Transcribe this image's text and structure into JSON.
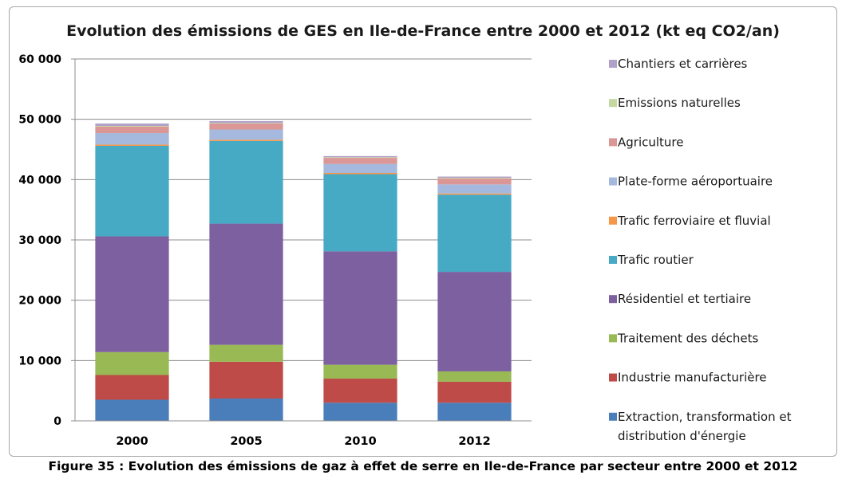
{
  "caption": "Figure 35 : Evolution des émissions de gaz à effet de serre en Ile-de-France par secteur entre 2000 et 2012",
  "chart_data": {
    "type": "bar",
    "stacked": true,
    "title": "Evolution des émissions de GES en Ile-de-France entre 2000 et 2012  (kt eq CO2/an)",
    "xlabel": "",
    "ylabel": "",
    "categories": [
      "2000",
      "2005",
      "2010",
      "2012"
    ],
    "ylim": [
      0,
      60000
    ],
    "yticks": [
      0,
      10000,
      20000,
      30000,
      40000,
      50000,
      60000
    ],
    "ytick_labels": [
      "0",
      "10 000",
      "20 000",
      "30 000",
      "40 000",
      "50 000",
      "60 000"
    ],
    "grid": "horizontal",
    "legend_position": "right",
    "series": [
      {
        "name": "Extraction, transformation et distribution d'énergie",
        "label_lines": [
          "Extraction, transformation et",
          "distribution d'énergie"
        ],
        "color": "#4a7ebb",
        "values": [
          3500,
          3700,
          3000,
          3000
        ]
      },
      {
        "name": "Industrie manufacturière",
        "color": "#be4b48",
        "values": [
          4100,
          6100,
          4000,
          3500
        ]
      },
      {
        "name": "Traitement des déchets",
        "color": "#98b954",
        "values": [
          3800,
          2800,
          2300,
          1700
        ]
      },
      {
        "name": "Résidentiel et tertiaire",
        "color": "#7d60a0",
        "values": [
          19200,
          20100,
          18800,
          16500
        ]
      },
      {
        "name": "Trafic routier",
        "color": "#46aac5",
        "values": [
          15000,
          13700,
          12800,
          12800
        ]
      },
      {
        "name": "Trafic ferroviaire et fluvial",
        "color": "#f79646",
        "values": [
          200,
          200,
          200,
          200
        ]
      },
      {
        "name": "Plate-forme aéroportuaire",
        "color": "#a5b8dd",
        "values": [
          1900,
          1700,
          1500,
          1500
        ]
      },
      {
        "name": "Agriculture",
        "color": "#db9795",
        "values": [
          1100,
          1000,
          1000,
          1000
        ]
      },
      {
        "name": "Emissions naturelles",
        "color": "#c4d8a0",
        "values": [
          100,
          100,
          100,
          100
        ]
      },
      {
        "name": "Chantiers et carrières",
        "color": "#b1a0c7",
        "values": [
          400,
          300,
          200,
          200
        ]
      }
    ]
  }
}
